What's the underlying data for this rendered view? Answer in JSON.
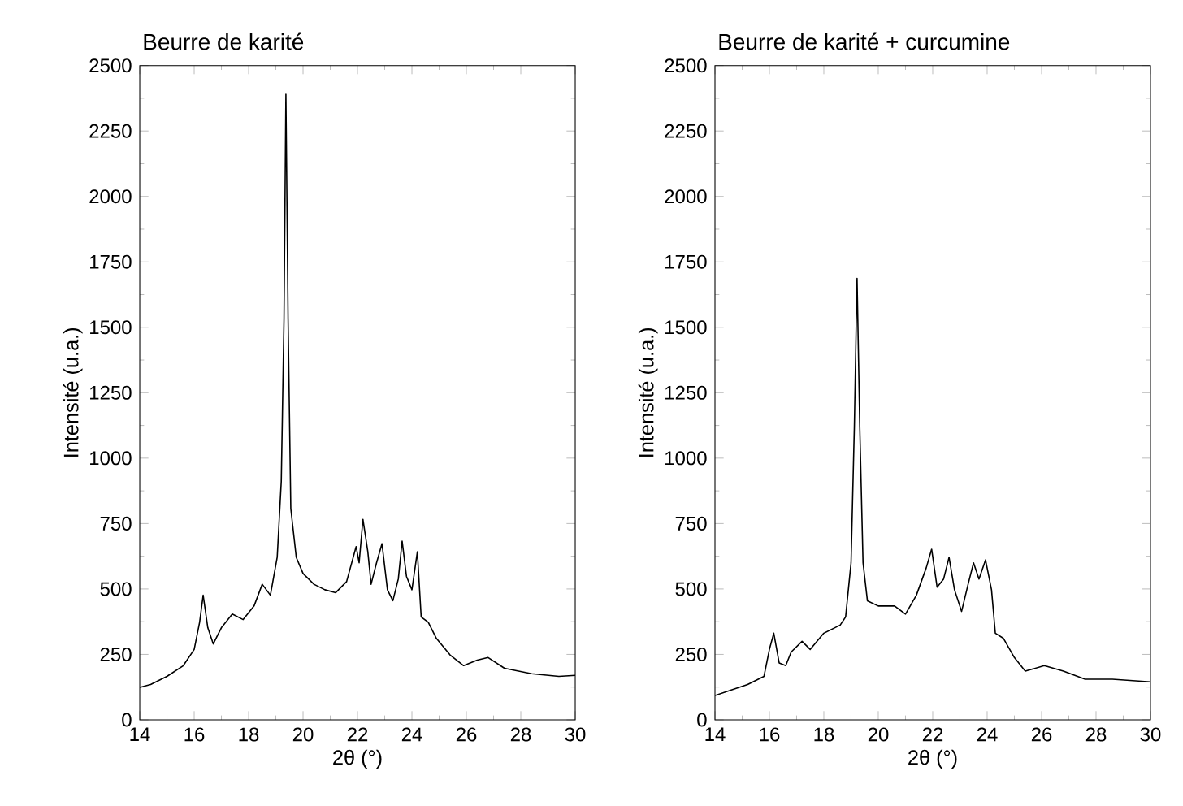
{
  "chart_data": [
    {
      "type": "line",
      "title": "Beurre de karité",
      "xlabel": "2θ (°)",
      "ylabel": "Intensité (u.a.)",
      "color": "#000000",
      "xlim": [
        14,
        30
      ],
      "ylim": [
        0,
        2500
      ],
      "xticks": [
        14,
        16,
        18,
        20,
        22,
        24,
        26,
        28,
        30
      ],
      "yticks": [
        0,
        250,
        500,
        750,
        1000,
        1250,
        1500,
        1750,
        2000,
        2250,
        2500
      ],
      "x": [
        14,
        14.4,
        15.0,
        15.6,
        16.0,
        16.2,
        16.33,
        16.5,
        16.7,
        17.0,
        17.4,
        17.8,
        18.2,
        18.5,
        18.8,
        19.05,
        19.2,
        19.3,
        19.37,
        19.45,
        19.55,
        19.75,
        20.0,
        20.4,
        20.8,
        21.2,
        21.6,
        21.95,
        22.06,
        22.2,
        22.38,
        22.5,
        22.7,
        22.9,
        23.1,
        23.3,
        23.5,
        23.64,
        23.8,
        24.0,
        24.2,
        24.34,
        24.6,
        24.9,
        25.4,
        25.9,
        26.4,
        26.8,
        27.4,
        28.4,
        29.4,
        30
      ],
      "values": [
        124,
        135,
        166,
        207,
        269,
        373,
        476,
        352,
        290,
        352,
        404,
        383,
        435,
        518,
        476,
        621,
        911,
        1532,
        2390,
        1532,
        807,
        621,
        559,
        518,
        497,
        486,
        528,
        662,
        600,
        766,
        642,
        518,
        600,
        673,
        497,
        455,
        538,
        683,
        548,
        497,
        642,
        393,
        373,
        311,
        248,
        207,
        228,
        238,
        197,
        176,
        166,
        170
      ]
    },
    {
      "type": "line",
      "title": "Beurre de karité + curcumine",
      "xlabel": "2θ (°)",
      "ylabel": "Intensité (u.a.)",
      "color": "#000000",
      "xlim": [
        14,
        30
      ],
      "ylim": [
        0,
        2500
      ],
      "xticks": [
        14,
        16,
        18,
        20,
        22,
        24,
        26,
        28,
        30
      ],
      "yticks": [
        0,
        250,
        500,
        750,
        1000,
        1250,
        1500,
        1750,
        2000,
        2250,
        2500
      ],
      "x": [
        14,
        14.6,
        15.2,
        15.8,
        16.0,
        16.16,
        16.36,
        16.6,
        16.8,
        17.2,
        17.5,
        18.0,
        18.6,
        18.8,
        19.0,
        19.12,
        19.22,
        19.32,
        19.44,
        19.6,
        20.0,
        20.6,
        21.0,
        21.4,
        21.76,
        21.96,
        22.16,
        22.4,
        22.6,
        22.8,
        23.06,
        23.3,
        23.5,
        23.7,
        23.94,
        24.16,
        24.3,
        24.6,
        25.0,
        25.4,
        26.1,
        26.8,
        27.6,
        28.6,
        30
      ],
      "values": [
        93,
        114,
        135,
        166,
        269,
        331,
        217,
        207,
        259,
        300,
        269,
        331,
        362,
        393,
        600,
        1118,
        1687,
        1118,
        600,
        455,
        435,
        435,
        404,
        476,
        580,
        652,
        507,
        538,
        621,
        497,
        414,
        518,
        600,
        538,
        611,
        497,
        331,
        311,
        238,
        186,
        207,
        186,
        155,
        155,
        145
      ]
    }
  ]
}
